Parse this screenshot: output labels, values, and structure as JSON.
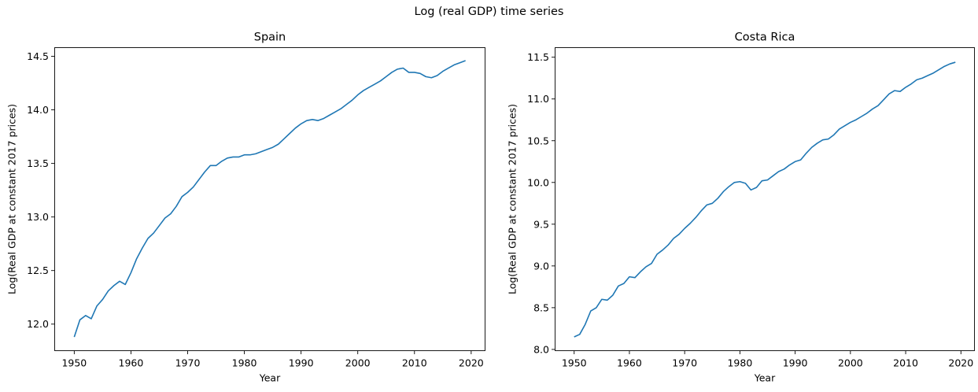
{
  "suptitle": "Log (real GDP) time series",
  "line_color": "#1f77b4",
  "chart_data": [
    {
      "type": "line",
      "title": "Spain",
      "xlabel": "Year",
      "ylabel": "Log(Real GDP at constant 2017 prices)",
      "xticks": [
        1950,
        1960,
        1970,
        1980,
        1990,
        2000,
        2010,
        2020
      ],
      "yticks": [
        12.0,
        12.5,
        13.0,
        13.5,
        14.0,
        14.5
      ],
      "ytick_labels": [
        "12.0",
        "12.5",
        "13.0",
        "13.5",
        "14.0",
        "14.5"
      ],
      "xlim": [
        1946.55,
        2022.45
      ],
      "ylim": [
        11.752,
        14.581
      ],
      "grid": false,
      "series": [
        {
          "x": [
            1950,
            1951,
            1952,
            1953,
            1954,
            1955,
            1956,
            1957,
            1958,
            1959,
            1960,
            1961,
            1962,
            1963,
            1964,
            1965,
            1966,
            1967,
            1968,
            1969,
            1970,
            1971,
            1972,
            1973,
            1974,
            1975,
            1976,
            1977,
            1978,
            1979,
            1980,
            1981,
            1982,
            1983,
            1984,
            1985,
            1986,
            1987,
            1988,
            1989,
            1990,
            1991,
            1992,
            1993,
            1994,
            1995,
            1996,
            1997,
            1998,
            1999,
            2000,
            2001,
            2002,
            2003,
            2004,
            2005,
            2006,
            2007,
            2008,
            2009,
            2010,
            2011,
            2012,
            2013,
            2014,
            2015,
            2016,
            2017,
            2018,
            2019
          ],
          "y": [
            11.88,
            12.04,
            12.08,
            12.05,
            12.17,
            12.23,
            12.31,
            12.36,
            12.4,
            12.37,
            12.48,
            12.61,
            12.71,
            12.8,
            12.85,
            12.92,
            12.99,
            13.03,
            13.1,
            13.19,
            13.23,
            13.28,
            13.35,
            13.42,
            13.48,
            13.48,
            13.52,
            13.55,
            13.56,
            13.56,
            13.58,
            13.58,
            13.59,
            13.61,
            13.63,
            13.65,
            13.68,
            13.73,
            13.78,
            13.83,
            13.87,
            13.9,
            13.91,
            13.9,
            13.92,
            13.95,
            13.98,
            14.01,
            14.05,
            14.09,
            14.14,
            14.18,
            14.21,
            14.24,
            14.27,
            14.31,
            14.35,
            14.38,
            14.39,
            14.35,
            14.35,
            14.34,
            14.31,
            14.3,
            14.32,
            14.36,
            14.39,
            14.42,
            14.44,
            14.46
          ]
        }
      ]
    },
    {
      "type": "line",
      "title": "Costa Rica",
      "xlabel": "Year",
      "ylabel": "Log(Real GDP at constant 2017 prices)",
      "xticks": [
        1950,
        1960,
        1970,
        1980,
        1990,
        2000,
        2010,
        2020
      ],
      "yticks": [
        8.0,
        8.5,
        9.0,
        9.5,
        10.0,
        10.5,
        11.0,
        11.5
      ],
      "ytick_labels": [
        "8.0",
        "8.5",
        "9.0",
        "9.5",
        "10.0",
        "10.5",
        "11.0",
        "11.5"
      ],
      "xlim": [
        1946.55,
        2022.45
      ],
      "ylim": [
        7.985,
        11.615
      ],
      "grid": false,
      "series": [
        {
          "x": [
            1950,
            1951,
            1952,
            1953,
            1954,
            1955,
            1956,
            1957,
            1958,
            1959,
            1960,
            1961,
            1962,
            1963,
            1964,
            1965,
            1966,
            1967,
            1968,
            1969,
            1970,
            1971,
            1972,
            1973,
            1974,
            1975,
            1976,
            1977,
            1978,
            1979,
            1980,
            1981,
            1982,
            1983,
            1984,
            1985,
            1986,
            1987,
            1988,
            1989,
            1990,
            1991,
            1992,
            1993,
            1994,
            1995,
            1996,
            1997,
            1998,
            1999,
            2000,
            2001,
            2002,
            2003,
            2004,
            2005,
            2006,
            2007,
            2008,
            2009,
            2010,
            2011,
            2012,
            2013,
            2014,
            2015,
            2016,
            2017,
            2018,
            2019
          ],
          "y": [
            8.15,
            8.18,
            8.3,
            8.46,
            8.5,
            8.6,
            8.59,
            8.65,
            8.76,
            8.79,
            8.87,
            8.86,
            8.93,
            8.99,
            9.03,
            9.14,
            9.19,
            9.25,
            9.33,
            9.38,
            9.45,
            9.51,
            9.58,
            9.66,
            9.73,
            9.75,
            9.81,
            9.89,
            9.95,
            10.0,
            10.01,
            9.99,
            9.91,
            9.94,
            10.02,
            10.03,
            10.08,
            10.13,
            10.16,
            10.21,
            10.25,
            10.27,
            10.35,
            10.42,
            10.47,
            10.51,
            10.52,
            10.57,
            10.64,
            10.68,
            10.72,
            10.75,
            10.79,
            10.83,
            10.88,
            10.92,
            10.99,
            11.06,
            11.1,
            11.09,
            11.14,
            11.18,
            11.23,
            11.25,
            11.28,
            11.31,
            11.35,
            11.39,
            11.42,
            11.44
          ]
        }
      ]
    }
  ]
}
